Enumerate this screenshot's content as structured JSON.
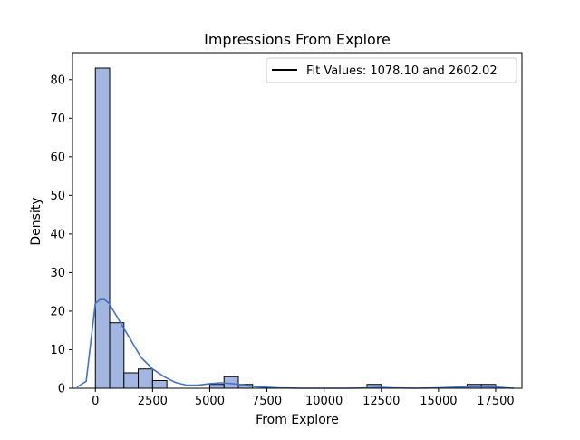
{
  "chart_data": {
    "type": "histogram",
    "title": "Impressions From Explore",
    "xlabel": "From Explore",
    "ylabel": "Density",
    "xlim": [
      -1000,
      18650
    ],
    "ylim": [
      0,
      87
    ],
    "x_ticks": [
      0,
      2500,
      5000,
      7500,
      10000,
      12500,
      15000,
      17500
    ],
    "x_tick_labels": [
      "0",
      "2500",
      "5000",
      "7500",
      "10000",
      "12500",
      "15000",
      "17500"
    ],
    "y_ticks": [
      0,
      10,
      20,
      30,
      40,
      50,
      60,
      70,
      80
    ],
    "y_tick_labels": [
      "0",
      "10",
      "20",
      "30",
      "40",
      "50",
      "60",
      "70",
      "80"
    ],
    "bins": {
      "start": 0,
      "width": 625,
      "counts": [
        83,
        17,
        4,
        5,
        2,
        0,
        0,
        0,
        1,
        3,
        1,
        0,
        0,
        0,
        0,
        0,
        0,
        0,
        0,
        1,
        0,
        0,
        0,
        0,
        0,
        0,
        1,
        1
      ]
    },
    "kde": {
      "x": [
        -800,
        -400,
        0,
        200,
        400,
        600,
        800,
        1000,
        1500,
        2000,
        2500,
        3000,
        3500,
        4000,
        4500,
        5000,
        5500,
        6000,
        6500,
        7000,
        8000,
        9000,
        10000,
        11000,
        12000,
        12500,
        13000,
        14000,
        15000,
        16000,
        16500,
        17000,
        17500,
        18000,
        18300
      ],
      "y": [
        0.3,
        1.8,
        22,
        23,
        23,
        22,
        20,
        18,
        13,
        8,
        5,
        3,
        1.5,
        0.8,
        0.8,
        1.2,
        1.4,
        1.2,
        0.8,
        0.4,
        0.1,
        0,
        0,
        0,
        0.1,
        0.2,
        0.1,
        0,
        0.1,
        0.3,
        0.4,
        0.4,
        0.3,
        0.1,
        0
      ]
    },
    "bar_color": "#a3b6e0",
    "bar_edge_color": "#000000",
    "line_color": "#4472c4",
    "legend": {
      "entries": [
        "Fit Values: 1078.10 and 2602.02"
      ],
      "line_color": "#000000",
      "placement": "upper-right"
    },
    "grid": false
  }
}
